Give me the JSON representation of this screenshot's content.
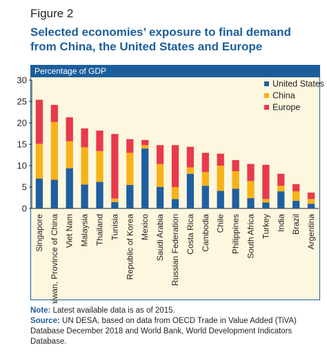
{
  "figure": {
    "label": "Figure 2",
    "title": "Selected economies’ exposure to final demand from China, the United States and Europe"
  },
  "panel_header": "Percentage of GDP",
  "notes": {
    "note_label": "Note:",
    "note_text": "Latest available data is as of 2015.",
    "source_label": "Source:",
    "source_text": "UN DESA, based on data from OECD Trade in Value Added (TiVA) Database December 2018 and World Bank, World Development Indicators Database."
  },
  "colors": {
    "united_states": "#1f5fa0",
    "china": "#f7b21a",
    "europe": "#e83a4c",
    "accent": "#1c5e9c",
    "panel_bg": "#fdf7df"
  },
  "chart_data": {
    "type": "bar",
    "stacked": true,
    "ylim": [
      0,
      30
    ],
    "yticks": [
      0,
      5,
      10,
      15,
      20,
      25,
      30
    ],
    "grid": false,
    "legend_position": "top-right",
    "categories": [
      "Singapore",
      "Taiwan, Province of China",
      "Viet Nam",
      "Malaysia",
      "Thailand",
      "Tunisia",
      "Republic of Korea",
      "Mexico",
      "Saudi Arabia",
      "Russian Federation",
      "Costa Rica",
      "Cambodia",
      "Chile",
      "Philippines",
      "South Africa",
      "Turkey",
      "India",
      "Brazil",
      "Argentina"
    ],
    "series": [
      {
        "name": "United States",
        "color": "#1f5fa0",
        "values": [
          7.0,
          6.7,
          9.4,
          5.6,
          6.2,
          1.5,
          5.5,
          14.0,
          5.0,
          2.2,
          8.1,
          5.3,
          4.1,
          4.6,
          2.4,
          1.4,
          4.0,
          1.8,
          1.1
        ]
      },
      {
        "name": "China",
        "color": "#f7b21a",
        "values": [
          8.1,
          13.5,
          6.3,
          8.7,
          7.2,
          0.8,
          7.5,
          0.8,
          5.4,
          2.8,
          1.5,
          3.2,
          5.9,
          4.1,
          4.0,
          0.8,
          1.3,
          2.2,
          1.1
        ]
      },
      {
        "name": "Europe",
        "color": "#e83a4c",
        "values": [
          10.3,
          4.0,
          5.6,
          4.4,
          4.8,
          15.1,
          3.2,
          1.2,
          4.4,
          9.8,
          4.8,
          4.5,
          2.8,
          2.6,
          4.0,
          8.0,
          2.8,
          1.7,
          1.5
        ]
      }
    ]
  }
}
